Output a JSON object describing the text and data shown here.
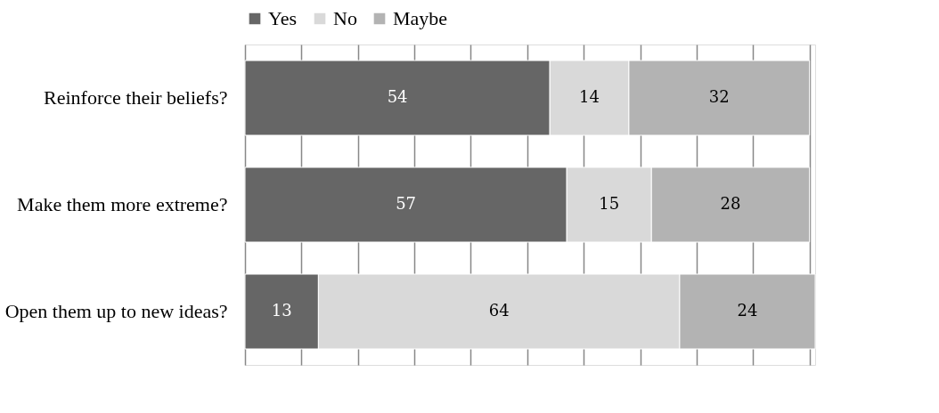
{
  "chart_data": {
    "type": "bar",
    "orientation": "horizontal",
    "stacked": true,
    "data_labels": true,
    "legend": "top",
    "grid": "x",
    "tick_labels": "y",
    "categories": [
      "Reinforce their beliefs?",
      "Make them more extreme?",
      "Open them up to new ideas?"
    ],
    "series": [
      {
        "name": "Yes",
        "color": "#666666",
        "values": [
          54,
          57,
          13
        ]
      },
      {
        "name": "No",
        "color": "#d9d9d9",
        "values": [
          14,
          15,
          64
        ]
      },
      {
        "name": "Maybe",
        "color": "#b3b3b3",
        "values": [
          32,
          28,
          24
        ]
      }
    ],
    "xlim": [
      0,
      101
    ],
    "xticks": [
      {
        "value": 0,
        "label": null
      },
      {
        "value": 10,
        "label": null
      },
      {
        "value": 20,
        "label": null
      },
      {
        "value": 30,
        "label": null
      },
      {
        "value": 40,
        "label": null
      },
      {
        "value": 50,
        "label": null
      },
      {
        "value": 60,
        "label": null
      },
      {
        "value": 70,
        "label": null
      },
      {
        "value": 80,
        "label": null
      },
      {
        "value": 90,
        "label": null
      },
      {
        "value": 100,
        "label": null
      }
    ]
  }
}
